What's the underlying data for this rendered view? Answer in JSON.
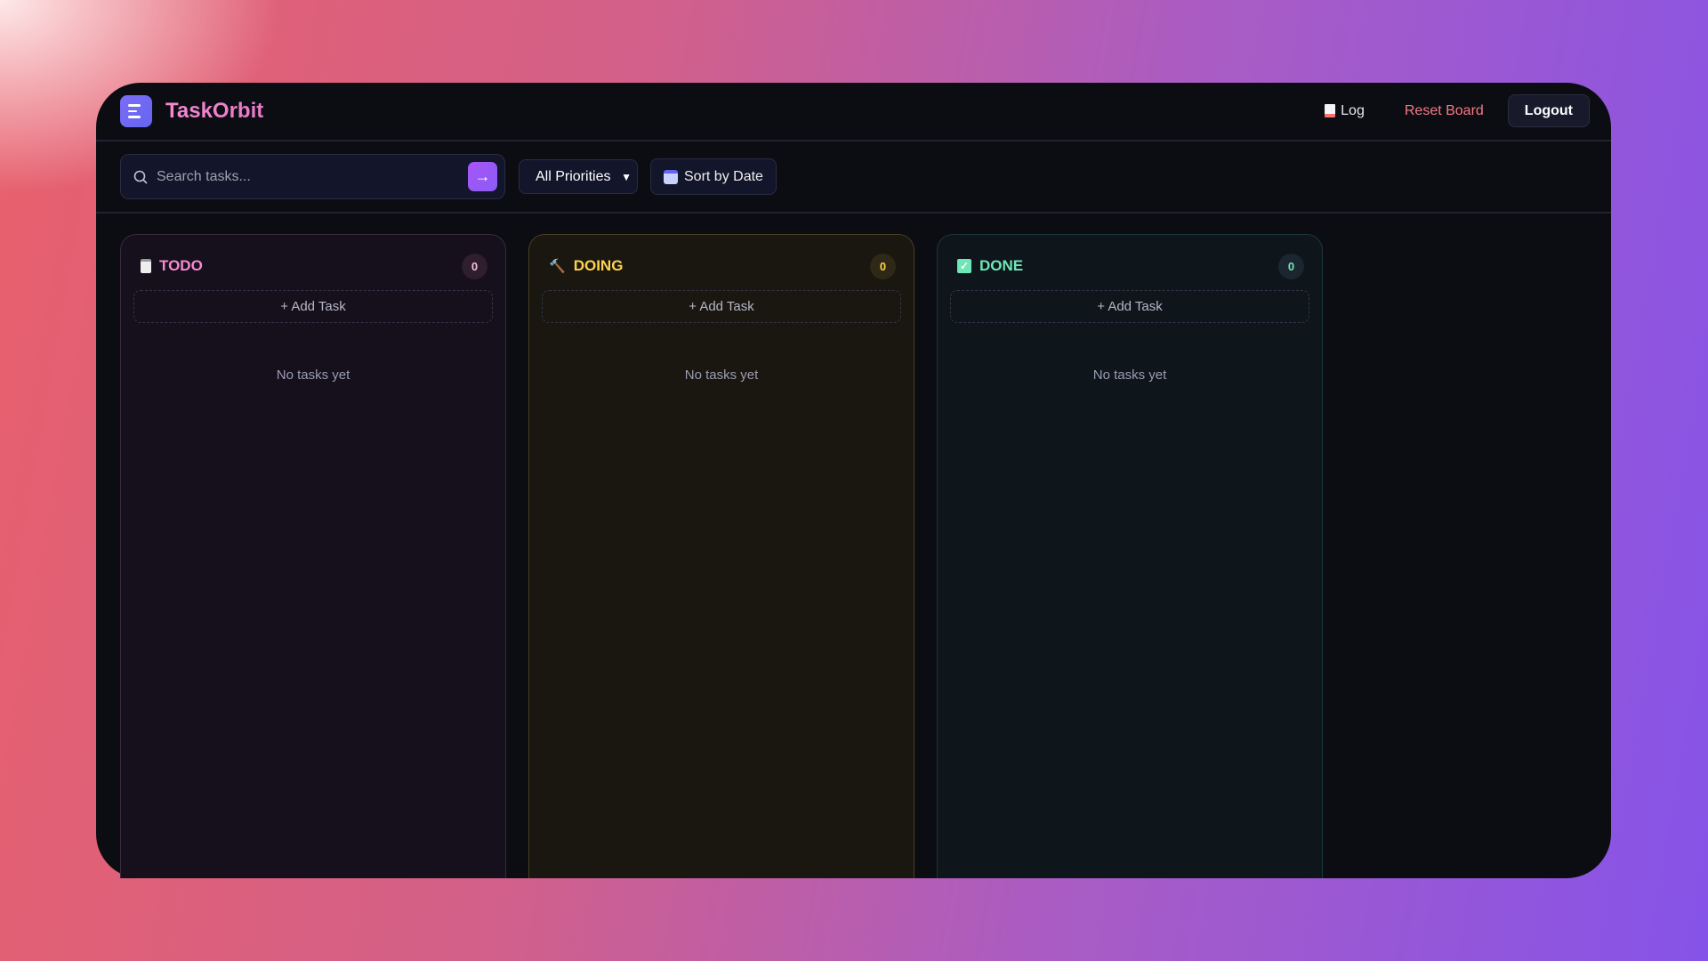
{
  "app": {
    "title": "TaskOrbit"
  },
  "header": {
    "log_label": "Log",
    "reset_label": "Reset Board",
    "logout_label": "Logout"
  },
  "toolbar": {
    "search_placeholder": "Search tasks...",
    "priority_selected": "All Priorities",
    "sort_label": "Sort by Date"
  },
  "columns": [
    {
      "name": "TODO",
      "count": "0",
      "add_label": "+ Add Task",
      "empty_text": "No tasks yet",
      "icon": "clipboard-icon",
      "color": "#f58ad0"
    },
    {
      "name": "DOING",
      "count": "0",
      "add_label": "+ Add Task",
      "empty_text": "No tasks yet",
      "icon": "hammer-icon",
      "color": "#fcd34d"
    },
    {
      "name": "DONE",
      "count": "0",
      "add_label": "+ Add Task",
      "empty_text": "No tasks yet",
      "icon": "check-box-icon",
      "color": "#6ee7b7"
    }
  ]
}
